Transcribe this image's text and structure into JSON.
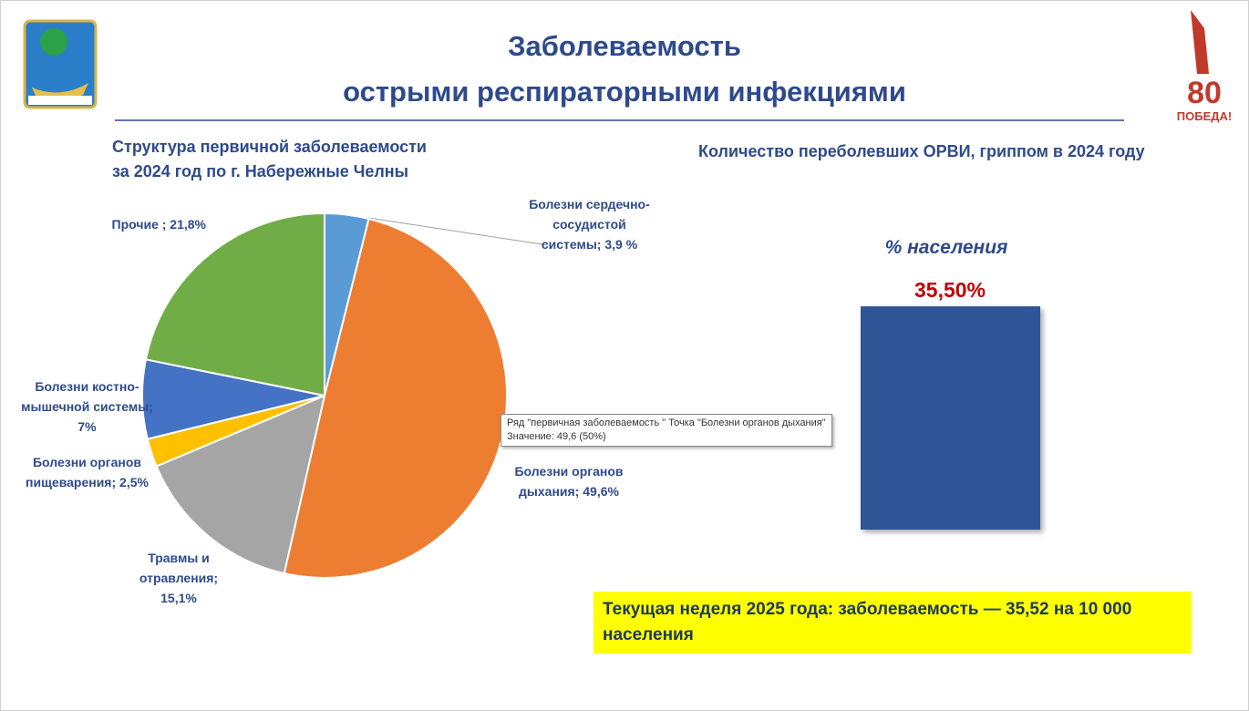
{
  "header": {
    "title_line1": "Заболеваемость",
    "title_line2": "острыми респираторными инфекциями"
  },
  "chart_data": [
    {
      "type": "pie",
      "title_line1": "Структура первичной заболеваемости",
      "title_line2": "за 2024 год по г. Набережные Челны",
      "categories": [
        "Болезни сердечно-сосудистой системы;",
        "Болезни органов дыхания;",
        "Травмы и отравления;",
        "Болезни органов пищеварения;",
        "Болезни костно-мышечной системы;",
        "Прочие ;"
      ],
      "values": [
        3.9,
        49.6,
        15.1,
        2.5,
        7,
        21.8
      ],
      "value_labels": [
        "3,9 %",
        "49,6%",
        "15,1%",
        "2,5%",
        "7%",
        "21,8%"
      ],
      "colors": [
        "#5b9bd5",
        "#ed7d31",
        "#a5a5a5",
        "#ffc000",
        "#4472c4",
        "#70ad47"
      ],
      "tooltip": [
        "Ряд \"первичная заболеваемость \" Точка \"Болезни органов дыхания\"",
        "Значение: 49,6 (50%)"
      ]
    },
    {
      "type": "bar",
      "title": "Количество переболевших ОРВИ, гриппом в 2024 году",
      "subtitle": "% населения",
      "values": [
        35.5
      ],
      "value_labels": [
        "35,50%"
      ],
      "color": "#2f5597",
      "ylim": [
        0,
        40
      ]
    }
  ],
  "note": "Текущая неделя 2025 года: заболеваемость — 35,52 на 10 000 населения",
  "logo_right": {
    "number": "80",
    "text": "ПОБЕДА!"
  }
}
